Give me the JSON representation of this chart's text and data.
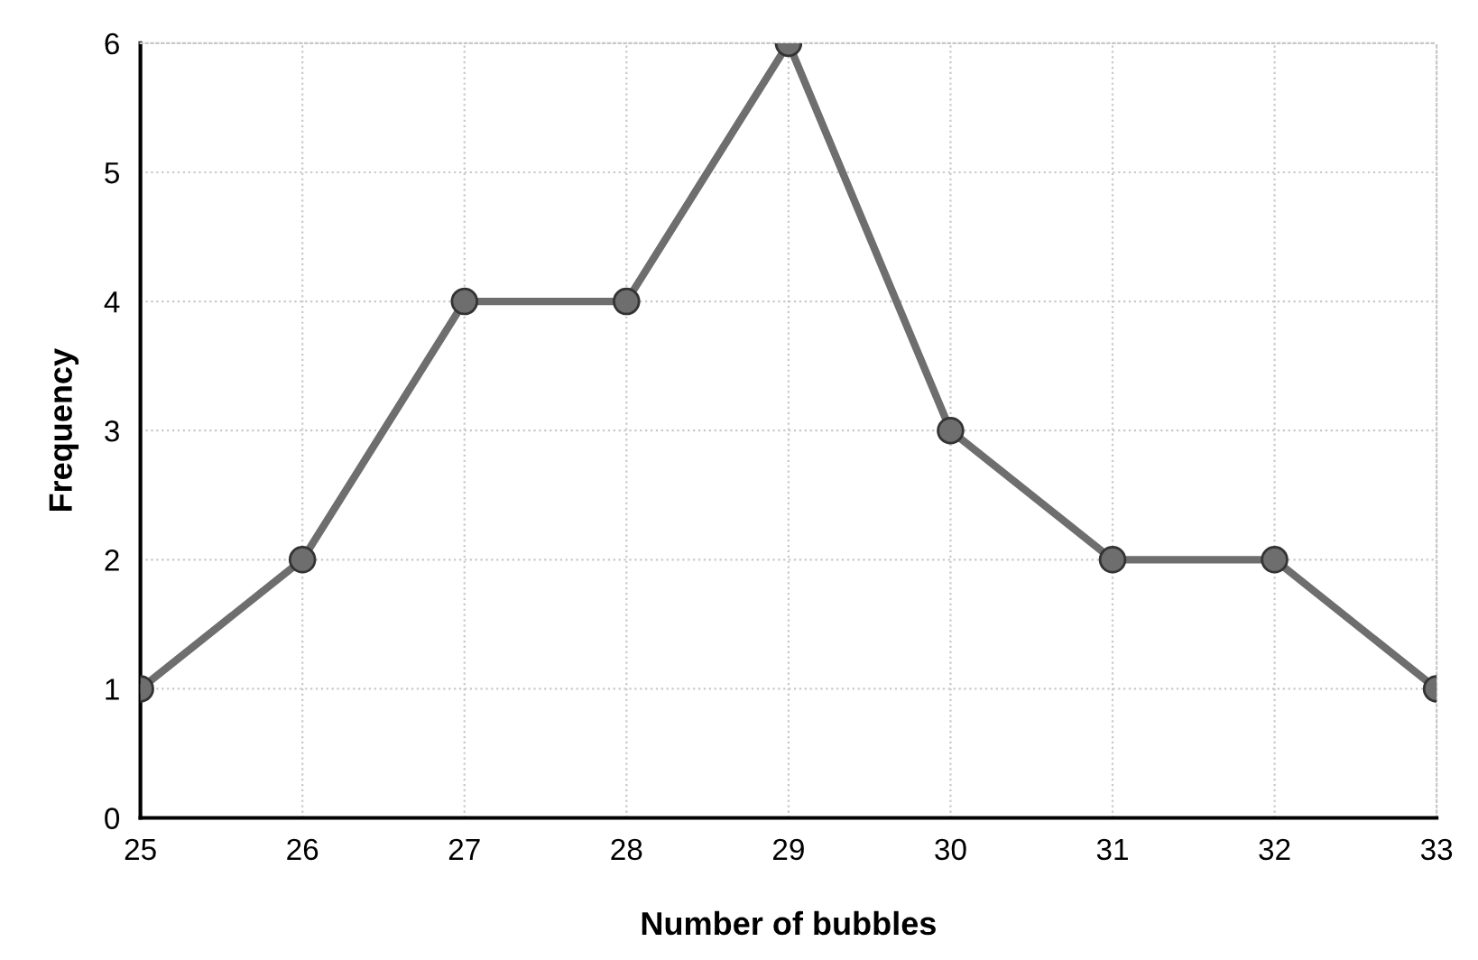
{
  "chart_data": {
    "type": "line",
    "xlabel": "Number of bubbles",
    "ylabel": "Frequency",
    "x": [
      25,
      26,
      27,
      28,
      29,
      30,
      31,
      32,
      33
    ],
    "series": [
      {
        "color": "#6e6e6e",
        "values": [
          1,
          2,
          4,
          4,
          6,
          3,
          2,
          2,
          1
        ]
      }
    ],
    "xlim": [
      25,
      33
    ],
    "xticks": [
      25,
      26,
      27,
      28,
      29,
      30,
      31,
      32,
      33
    ],
    "ylim": [
      0,
      6
    ],
    "yticks": [
      0,
      1,
      2,
      3,
      4,
      5,
      6
    ],
    "grid": true,
    "marker": "circle",
    "line_style": "solid"
  }
}
